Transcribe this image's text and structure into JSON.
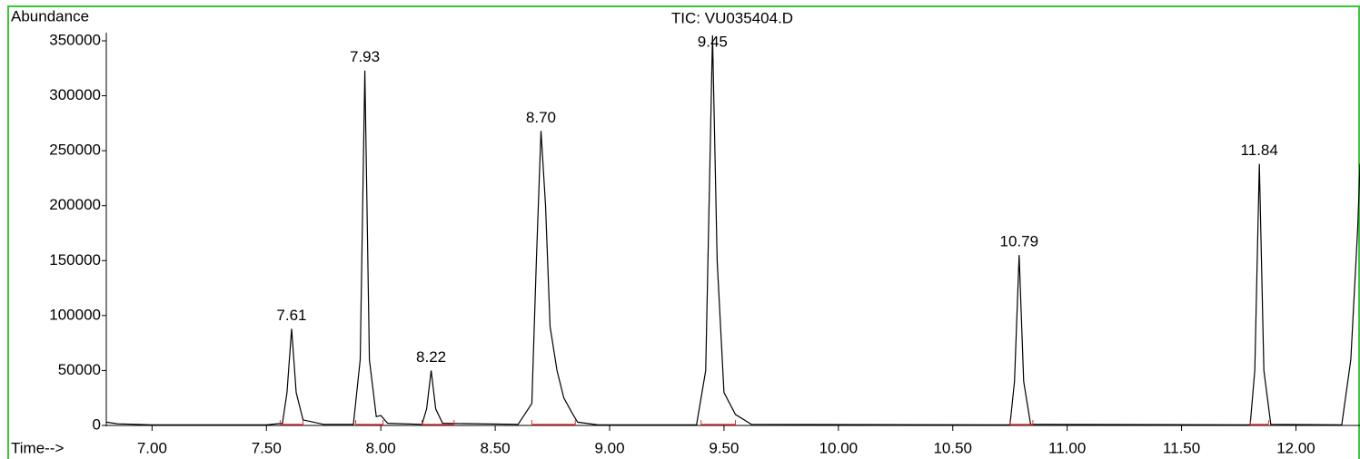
{
  "chart_data": {
    "type": "line",
    "title": "TIC: VU035404.D",
    "y_label": "Abundance",
    "x_label": "Time-->",
    "x": [
      6.8,
      6.85,
      7.0,
      7.5,
      7.57,
      7.59,
      7.61,
      7.63,
      7.66,
      7.75,
      7.88,
      7.91,
      7.93,
      7.95,
      7.98,
      8.0,
      8.03,
      8.18,
      8.2,
      8.22,
      8.24,
      8.27,
      8.6,
      8.66,
      8.68,
      8.7,
      8.72,
      8.74,
      8.77,
      8.8,
      8.84,
      8.86,
      8.95,
      9.38,
      9.42,
      9.45,
      9.47,
      9.5,
      9.55,
      9.62,
      10.75,
      10.77,
      10.79,
      10.81,
      10.84,
      11.8,
      11.82,
      11.84,
      11.86,
      11.89,
      12.2,
      12.24,
      12.27,
      12.28
    ],
    "series": [
      {
        "color": "#000000",
        "values": [
          3000,
          1500,
          500,
          500,
          2000,
          30000,
          88000,
          30000,
          5000,
          1000,
          1000,
          60000,
          323000,
          60000,
          8000,
          9000,
          2000,
          1000,
          15000,
          50000,
          15000,
          2000,
          1000,
          20000,
          150000,
          268000,
          200000,
          90000,
          50000,
          25000,
          10000,
          3000,
          500,
          500,
          50000,
          355000,
          150000,
          30000,
          10000,
          1000,
          500,
          40000,
          155000,
          40000,
          1000,
          500,
          50000,
          238000,
          50000,
          1000,
          500,
          60000,
          180000,
          238000
        ]
      }
    ],
    "peaks": [
      {
        "value": 7.61,
        "label": "7.61"
      },
      {
        "value": 7.93,
        "label": "7.93"
      },
      {
        "value": 8.22,
        "label": "8.22"
      },
      {
        "value": 8.7,
        "label": "8.70"
      },
      {
        "value": 9.45,
        "label": "9.45"
      },
      {
        "value": 10.79,
        "label": "10.79"
      },
      {
        "value": 11.84,
        "label": "11.84"
      }
    ],
    "baseline_color": "#e03030",
    "baselines": [
      [
        7.56,
        7.66
      ],
      [
        7.89,
        8.01
      ],
      [
        8.18,
        8.32
      ],
      [
        8.66,
        8.85
      ],
      [
        9.4,
        9.55
      ],
      [
        10.75,
        10.85
      ],
      [
        11.8,
        11.88
      ]
    ],
    "xlim": [
      6.8,
      12.28
    ],
    "ylim": [
      0,
      350000
    ],
    "xticks": [
      {
        "value": 7,
        "label": "7.00"
      },
      {
        "value": 7.5,
        "label": "7.50"
      },
      {
        "value": 8,
        "label": "8.00"
      },
      {
        "value": 8.5,
        "label": "8.50"
      },
      {
        "value": 9,
        "label": "9.00"
      },
      {
        "value": 9.5,
        "label": "9.50"
      },
      {
        "value": 10,
        "label": "10.00"
      },
      {
        "value": 10.5,
        "label": "10.50"
      },
      {
        "value": 11,
        "label": "11.00"
      },
      {
        "value": 11.5,
        "label": "11.50"
      },
      {
        "value": 12,
        "label": "12.00"
      }
    ],
    "yticks": [
      0,
      50000,
      100000,
      150000,
      200000,
      250000,
      300000,
      350000
    ],
    "grid": false
  }
}
